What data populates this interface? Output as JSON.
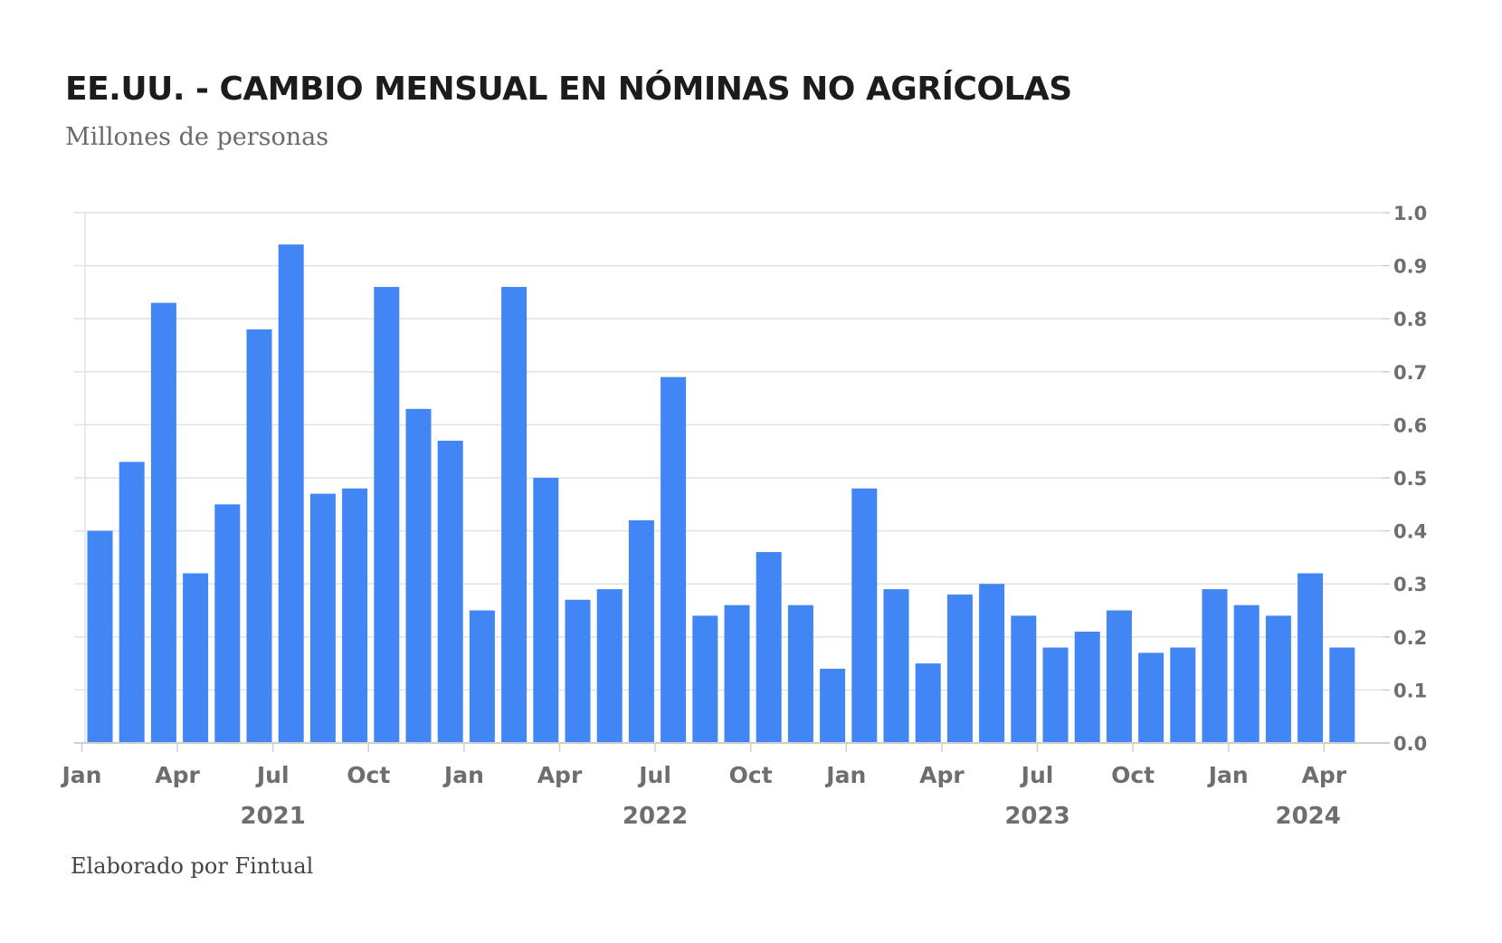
{
  "header": {
    "title": "EE.UU. - CAMBIO MENSUAL EN NÓMINAS NO AGRÍCOLAS",
    "subtitle": "Millones de personas"
  },
  "footer": {
    "credit": "Elaborado por Fintual"
  },
  "colors": {
    "bar": "#4285f4",
    "grid": "#e2e2e2",
    "axis": "#cfcfcf",
    "text": "#6e6e6e"
  },
  "chart_data": {
    "type": "bar",
    "title": "EE.UU. - CAMBIO MENSUAL EN NÓMINAS NO AGRÍCOLAS",
    "subtitle": "Millones de personas",
    "y_axis_position": "right",
    "ylim": [
      0,
      1.0
    ],
    "yticks": [
      "0.0",
      "0.1",
      "0.2",
      "0.3",
      "0.4",
      "0.5",
      "0.6",
      "0.7",
      "0.8",
      "0.9",
      "1.0"
    ],
    "grid": true,
    "categories": [
      "2021-01",
      "2021-02",
      "2021-03",
      "2021-04",
      "2021-05",
      "2021-06",
      "2021-07",
      "2021-08",
      "2021-09",
      "2021-10",
      "2021-11",
      "2021-12",
      "2022-01",
      "2022-02",
      "2022-03",
      "2022-04",
      "2022-05",
      "2022-06",
      "2022-07",
      "2022-08",
      "2022-09",
      "2022-10",
      "2022-11",
      "2022-12",
      "2023-01",
      "2023-02",
      "2023-03",
      "2023-04",
      "2023-05",
      "2023-06",
      "2023-07",
      "2023-08",
      "2023-09",
      "2023-10",
      "2023-11",
      "2023-12",
      "2024-01",
      "2024-02",
      "2024-03",
      "2024-04"
    ],
    "values": [
      0.4,
      0.53,
      0.83,
      0.32,
      0.45,
      0.78,
      0.94,
      0.47,
      0.48,
      0.86,
      0.63,
      0.57,
      0.25,
      0.86,
      0.5,
      0.27,
      0.29,
      0.42,
      0.69,
      0.24,
      0.26,
      0.36,
      0.26,
      0.14,
      0.48,
      0.29,
      0.15,
      0.28,
      0.3,
      0.24,
      0.18,
      0.21,
      0.25,
      0.17,
      0.18,
      0.29,
      0.26,
      0.24,
      0.32,
      0.18
    ],
    "x_tick_labels": [
      {
        "index": 0,
        "label": "Jan"
      },
      {
        "index": 3,
        "label": "Apr"
      },
      {
        "index": 6,
        "label": "Jul"
      },
      {
        "index": 9,
        "label": "Oct"
      },
      {
        "index": 12,
        "label": "Jan"
      },
      {
        "index": 15,
        "label": "Apr"
      },
      {
        "index": 18,
        "label": "Jul"
      },
      {
        "index": 21,
        "label": "Oct"
      },
      {
        "index": 24,
        "label": "Jan"
      },
      {
        "index": 27,
        "label": "Apr"
      },
      {
        "index": 30,
        "label": "Jul"
      },
      {
        "index": 33,
        "label": "Oct"
      },
      {
        "index": 36,
        "label": "Jan"
      },
      {
        "index": 39,
        "label": "Apr"
      }
    ],
    "year_labels": [
      {
        "index": 6,
        "label": "2021"
      },
      {
        "index": 18,
        "label": "2022"
      },
      {
        "index": 30,
        "label": "2023"
      },
      {
        "index": 38.5,
        "label": "2024"
      }
    ]
  }
}
